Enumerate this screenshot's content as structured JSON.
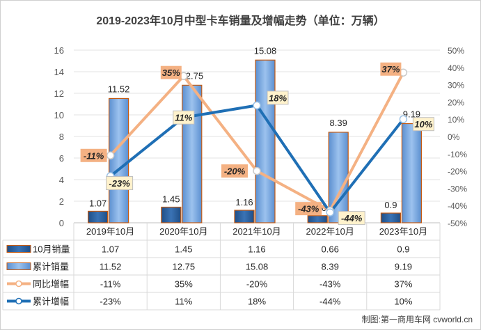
{
  "title": "2019-2023年10月中型卡车销量及增幅走势（单位：万辆）",
  "footer": "制图:第一商用车网 cvworld.cn",
  "chart_data": {
    "type": "bar",
    "title": "2019-2023年10月中型卡车销量及增幅走势（单位：万辆）",
    "categories": [
      "2019年10月",
      "2020年10月",
      "2021年10月",
      "2022年10月",
      "2023年10月"
    ],
    "ylim": [
      0,
      16
    ],
    "yticks": [
      0,
      2,
      4,
      6,
      8,
      10,
      12,
      14,
      16
    ],
    "y2lim": [
      -50,
      50
    ],
    "y2ticks": [
      "-50%",
      "-40%",
      "-30%",
      "-20%",
      "-10%",
      "0%",
      "10%",
      "20%",
      "30%",
      "40%",
      "50%"
    ],
    "grid": true,
    "series": [
      {
        "name": "10月销量",
        "kind": "bar",
        "axis": "left",
        "values": [
          1.07,
          1.45,
          1.16,
          0.66,
          0.9
        ],
        "labels": [
          "1.07",
          "1.45",
          "1.16",
          "0.66",
          "0.9"
        ],
        "color": "#2e5f96"
      },
      {
        "name": "累计销量",
        "kind": "bar",
        "axis": "left",
        "values": [
          11.52,
          12.75,
          15.08,
          8.39,
          9.19
        ],
        "labels": [
          "11.52",
          "12.75",
          "15.08",
          "8.39",
          "9.19"
        ],
        "color": "#6e9fd9"
      },
      {
        "name": "同比增幅",
        "kind": "line",
        "axis": "right",
        "values": [
          -11,
          35,
          -20,
          -43,
          37
        ],
        "labels": [
          "-11%",
          "35%",
          "-20%",
          "-43%",
          "37%"
        ],
        "color": "#f4b183"
      },
      {
        "name": "累计增幅",
        "kind": "line",
        "axis": "right",
        "values": [
          -23,
          11,
          18,
          -44,
          10
        ],
        "labels": [
          "-23%",
          "11%",
          "18%",
          "-44%",
          "10%"
        ],
        "color": "#1f6fb5"
      }
    ]
  }
}
